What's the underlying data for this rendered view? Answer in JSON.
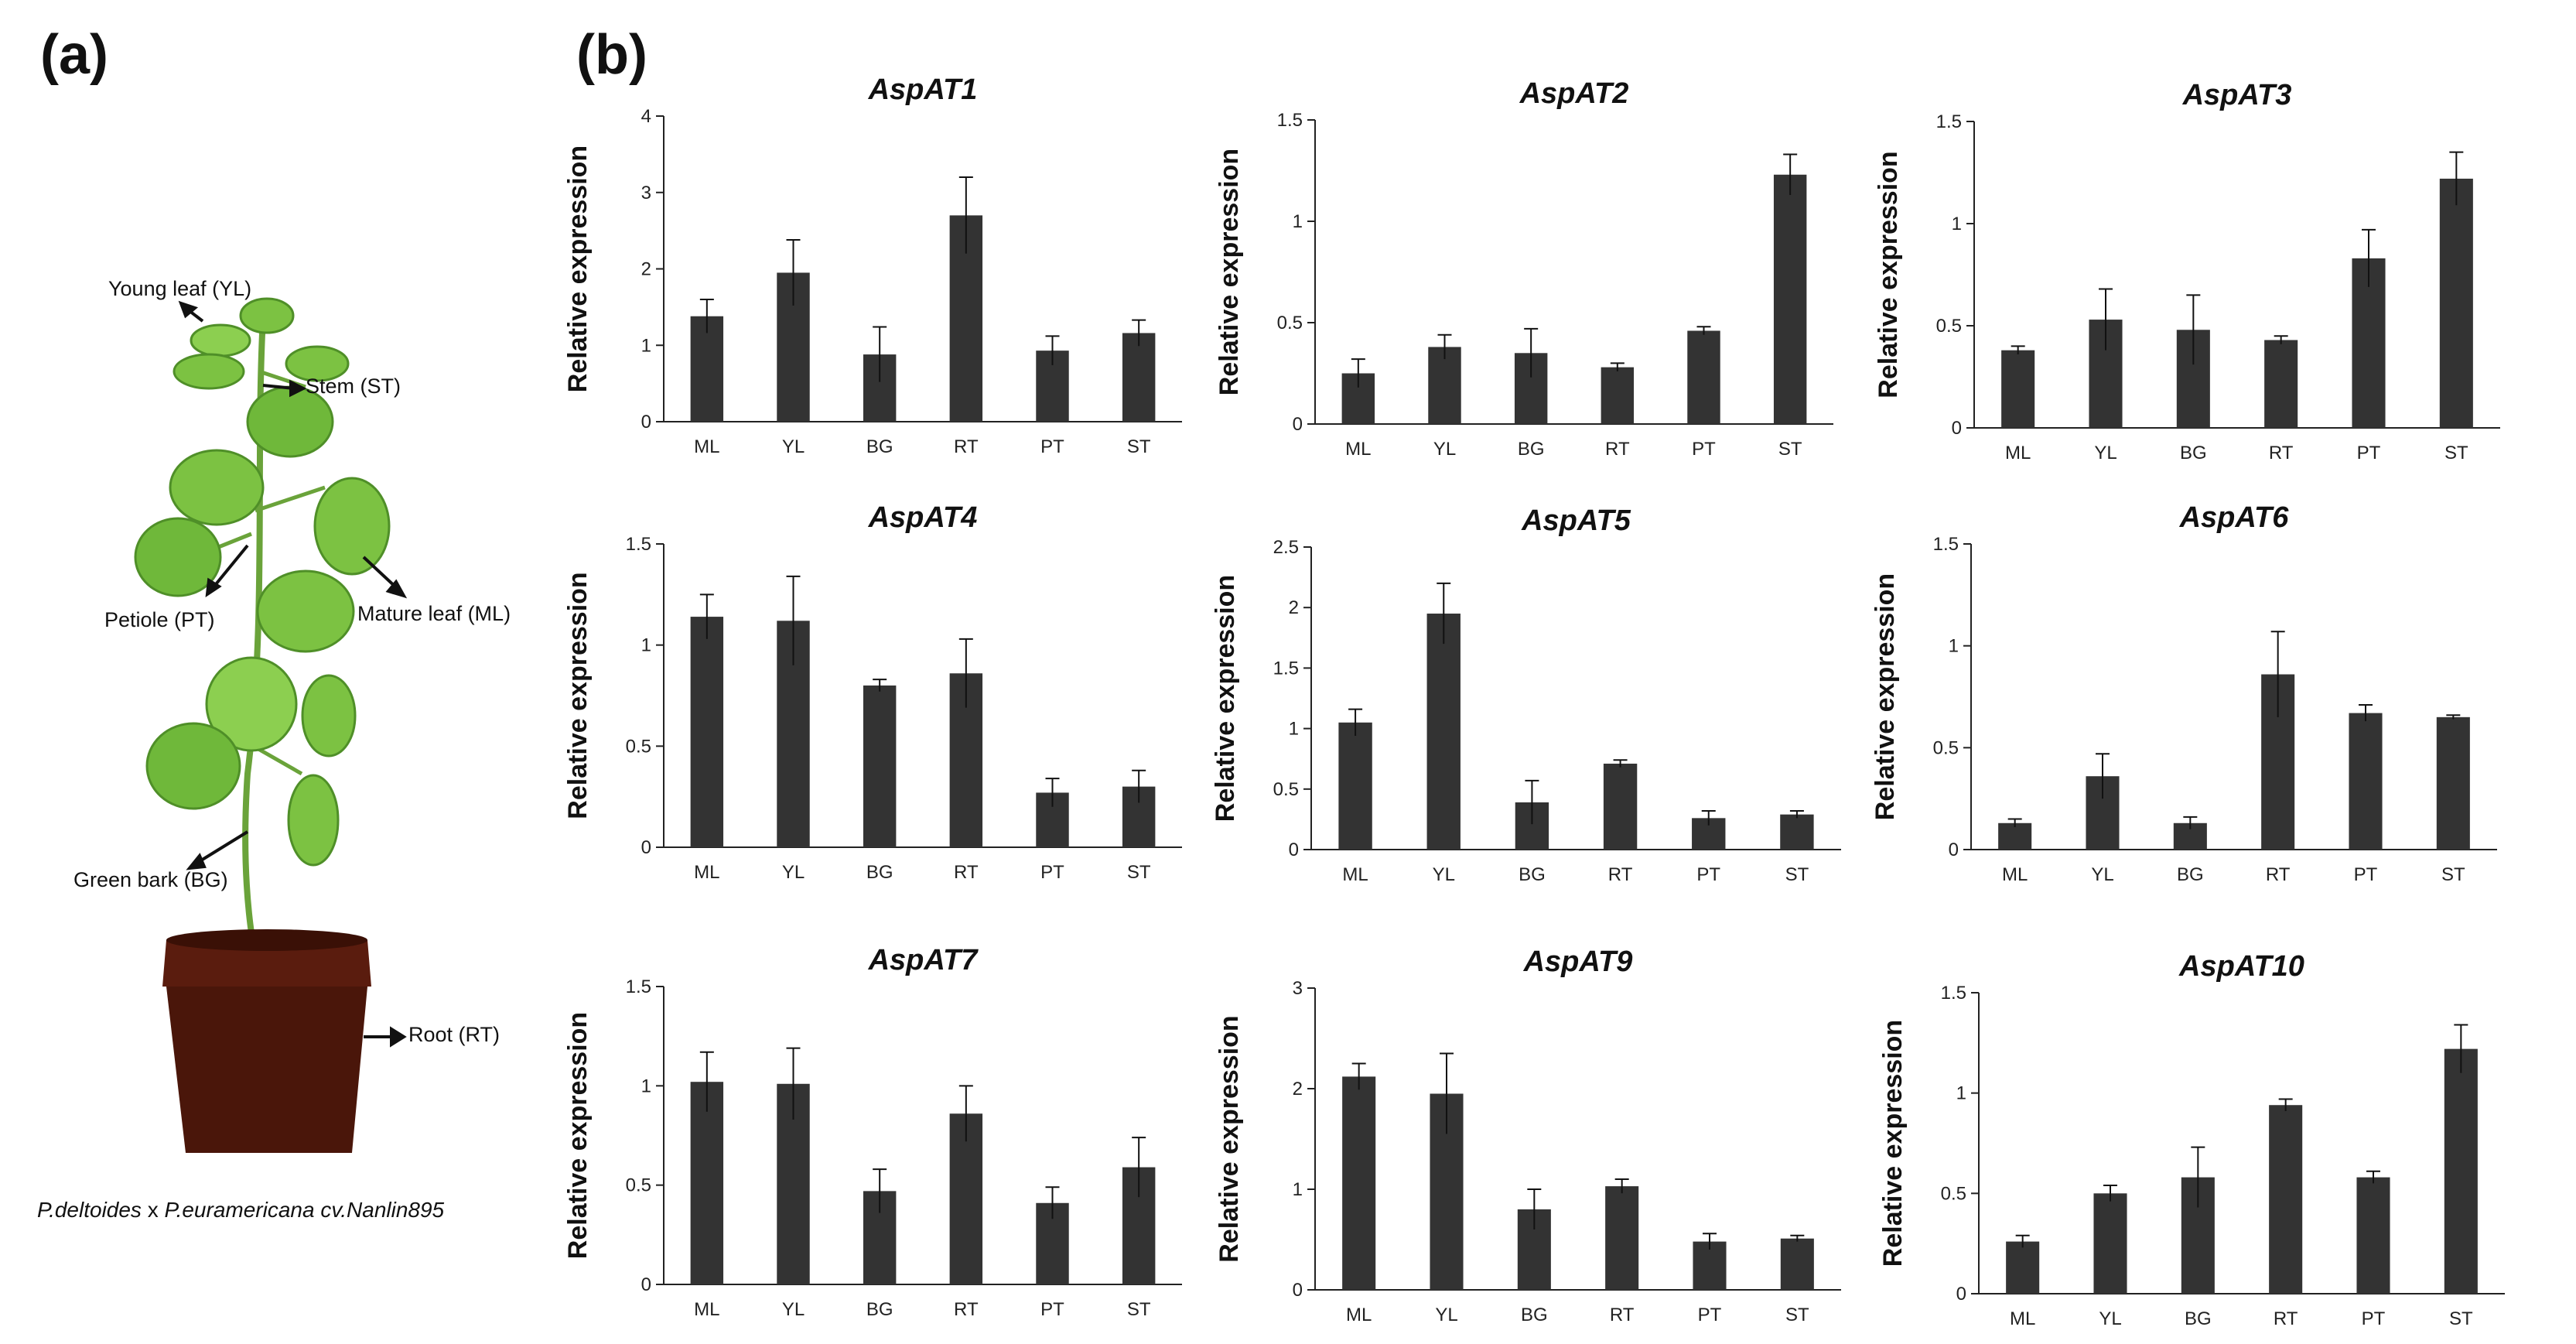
{
  "panels": {
    "a": "(a)",
    "b": "(b)"
  },
  "plant": {
    "labels": {
      "young_leaf": "Young leaf (YL)",
      "stem": "Stem (ST)",
      "petiole": "Petiole (PT)",
      "mature_leaf": "Mature leaf (ML)",
      "green_bark": "Green bark (BG)",
      "root": "Root (RT)"
    },
    "caption": {
      "species1": "P.deltoides",
      "cross": " x ",
      "species2": "P.euramericana",
      "cultivar": " cv.Nanlin895"
    },
    "colors": {
      "leaf": "#7cc242",
      "leaf_dark": "#4f8f28",
      "stem": "#6aa33a",
      "pot": "#5a1c0e"
    }
  },
  "colors": {
    "bar": "#333333",
    "axis": "#222222"
  },
  "chart_data": [
    {
      "type": "bar",
      "title": "AspAT1",
      "ylabel": "Relative expression",
      "categories": [
        "ML",
        "YL",
        "BG",
        "RT",
        "PT",
        "ST"
      ],
      "values": [
        1.38,
        1.95,
        0.88,
        2.7,
        0.93,
        1.16
      ],
      "errors": [
        0.22,
        0.43,
        0.36,
        0.5,
        0.19,
        0.17
      ],
      "ylim": [
        0,
        4
      ],
      "yticks": [
        "0",
        "1",
        "2",
        "3",
        "4"
      ]
    },
    {
      "type": "bar",
      "title": "AspAT2",
      "ylabel": "Relative expression",
      "categories": [
        "ML",
        "YL",
        "BG",
        "RT",
        "PT",
        "ST"
      ],
      "values": [
        0.25,
        0.38,
        0.35,
        0.28,
        0.46,
        1.23
      ],
      "errors": [
        0.07,
        0.06,
        0.12,
        0.02,
        0.02,
        0.1
      ],
      "ylim": [
        0,
        1.5
      ],
      "yticks": [
        "0",
        "0.5",
        "1",
        "1.5"
      ]
    },
    {
      "type": "bar",
      "title": "AspAT3",
      "ylabel": "Relative expression",
      "categories": [
        "ML",
        "YL",
        "BG",
        "RT",
        "PT",
        "ST"
      ],
      "values": [
        0.38,
        0.53,
        0.48,
        0.43,
        0.83,
        1.22
      ],
      "errors": [
        0.02,
        0.15,
        0.17,
        0.02,
        0.14,
        0.13
      ],
      "ylim": [
        0,
        1.5
      ],
      "yticks": [
        "0",
        "0.5",
        "1",
        "1.5"
      ]
    },
    {
      "type": "bar",
      "title": "AspAT4",
      "ylabel": "Relative expression",
      "categories": [
        "ML",
        "YL",
        "BG",
        "RT",
        "PT",
        "ST"
      ],
      "values": [
        1.14,
        1.12,
        0.8,
        0.86,
        0.27,
        0.3
      ],
      "errors": [
        0.11,
        0.22,
        0.03,
        0.17,
        0.07,
        0.08
      ],
      "ylim": [
        0,
        1.5
      ],
      "yticks": [
        "0",
        "0.5",
        "1",
        "1.5"
      ]
    },
    {
      "type": "bar",
      "title": "AspAT5",
      "ylabel": "Relative expression",
      "categories": [
        "ML",
        "YL",
        "BG",
        "RT",
        "PT",
        "ST"
      ],
      "values": [
        1.05,
        1.95,
        0.39,
        0.71,
        0.26,
        0.29
      ],
      "errors": [
        0.11,
        0.25,
        0.18,
        0.03,
        0.06,
        0.03
      ],
      "ylim": [
        0,
        2.5
      ],
      "yticks": [
        "0",
        "0.5",
        "1",
        "1.5",
        "2",
        "2.5"
      ]
    },
    {
      "type": "bar",
      "title": "AspAT6",
      "ylabel": "Relative expression",
      "categories": [
        "ML",
        "YL",
        "BG",
        "RT",
        "PT",
        "ST"
      ],
      "values": [
        0.13,
        0.36,
        0.13,
        0.86,
        0.67,
        0.65
      ],
      "errors": [
        0.02,
        0.11,
        0.03,
        0.21,
        0.04,
        0.01
      ],
      "ylim": [
        0,
        1.5
      ],
      "yticks": [
        "0",
        "0.5",
        "1",
        "1.5"
      ]
    },
    {
      "type": "bar",
      "title": "AspAT7",
      "ylabel": "Relative expression",
      "categories": [
        "ML",
        "YL",
        "BG",
        "RT",
        "PT",
        "ST"
      ],
      "values": [
        1.02,
        1.01,
        0.47,
        0.86,
        0.41,
        0.59
      ],
      "errors": [
        0.15,
        0.18,
        0.11,
        0.14,
        0.08,
        0.15
      ],
      "ylim": [
        0,
        1.5
      ],
      "yticks": [
        "0",
        "0.5",
        "1",
        "1.5"
      ]
    },
    {
      "type": "bar",
      "title": "AspAT9",
      "ylabel": "Relative expression",
      "categories": [
        "ML",
        "YL",
        "BG",
        "RT",
        "PT",
        "ST"
      ],
      "values": [
        2.12,
        1.95,
        0.8,
        1.03,
        0.48,
        0.51
      ],
      "errors": [
        0.13,
        0.4,
        0.2,
        0.07,
        0.08,
        0.03
      ],
      "ylim": [
        0,
        3
      ],
      "yticks": [
        "0",
        "1",
        "2",
        "3"
      ]
    },
    {
      "type": "bar",
      "title": "AspAT10",
      "ylabel": "Relative expression",
      "categories": [
        "ML",
        "YL",
        "BG",
        "RT",
        "PT",
        "ST"
      ],
      "values": [
        0.26,
        0.5,
        0.58,
        0.94,
        0.58,
        1.22
      ],
      "errors": [
        0.03,
        0.04,
        0.15,
        0.03,
        0.03,
        0.12
      ],
      "ylim": [
        0,
        1.5
      ],
      "yticks": [
        "0",
        "0.5",
        "1",
        "1.5"
      ]
    }
  ]
}
